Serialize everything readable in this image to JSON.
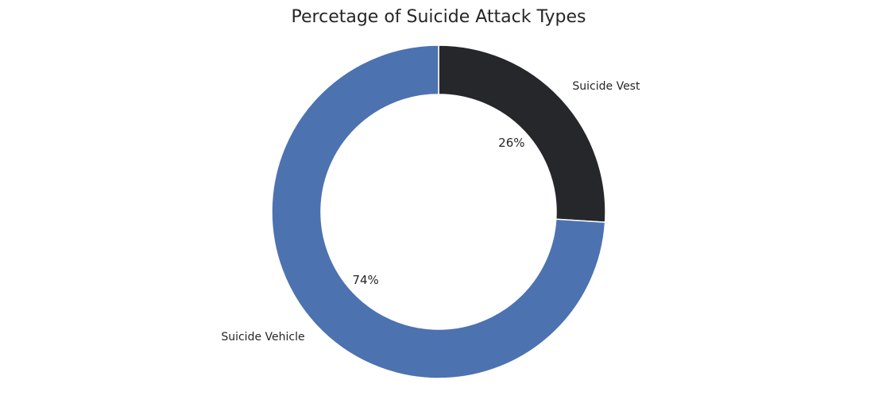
{
  "chart_data": {
    "type": "pie",
    "title": "Percetage of Suicide Attack Types",
    "donut": true,
    "start_angle_deg": 90,
    "direction": "clockwise",
    "slices": [
      {
        "label": "Suicide Vest",
        "value": 26,
        "pct_label": "26%",
        "color": "#26272b"
      },
      {
        "label": "Suicide Vehicle",
        "value": 74,
        "pct_label": "74%",
        "color": "#4c72b0"
      }
    ]
  }
}
